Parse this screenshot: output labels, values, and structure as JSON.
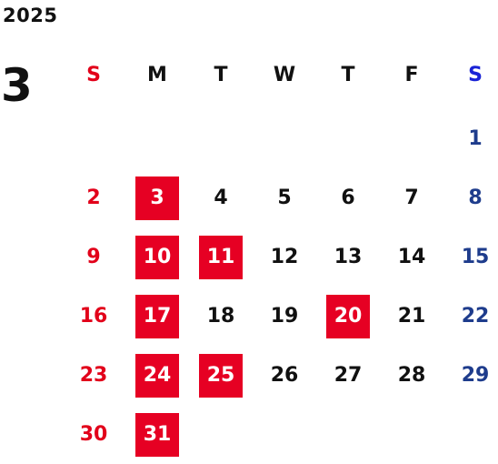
{
  "calendar": {
    "year": "2025",
    "month": "3",
    "weekdays": [
      "S",
      "M",
      "T",
      "W",
      "T",
      "F",
      "S"
    ],
    "weeks": [
      [
        "",
        "",
        "",
        "",
        "",
        "",
        "1"
      ],
      [
        "2",
        "3",
        "4",
        "5",
        "6",
        "7",
        "8"
      ],
      [
        "9",
        "10",
        "11",
        "12",
        "13",
        "14",
        "15"
      ],
      [
        "16",
        "17",
        "18",
        "19",
        "20",
        "21",
        "22"
      ],
      [
        "23",
        "24",
        "25",
        "26",
        "27",
        "28",
        "29"
      ],
      [
        "30",
        "31",
        "",
        "",
        "",
        "",
        ""
      ]
    ],
    "highlighted_days": [
      "3",
      "10",
      "11",
      "17",
      "20",
      "24",
      "25",
      "31"
    ]
  },
  "colors": {
    "highlight_bg": "#e60023",
    "sunday": "#e2001a",
    "saturday": "#1e3c8c",
    "saturday_header": "#1a23d6",
    "text": "#111111"
  }
}
